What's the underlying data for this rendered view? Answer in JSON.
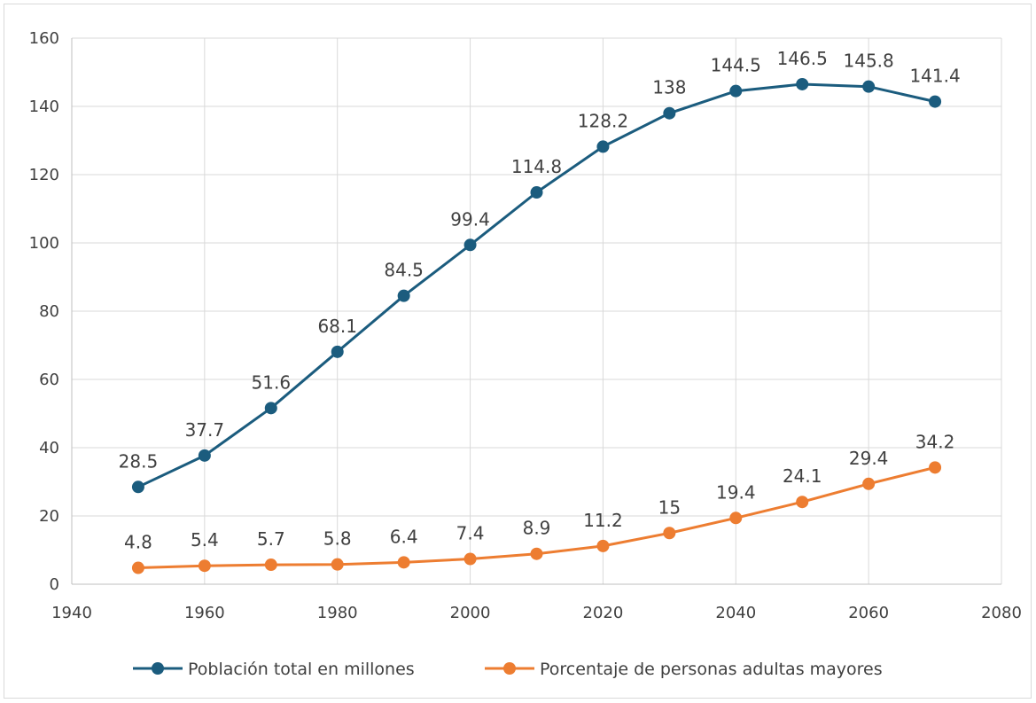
{
  "chart_data": {
    "type": "line",
    "title": "",
    "xlabel": "",
    "ylabel": "",
    "xlim": [
      1940,
      2080
    ],
    "ylim": [
      0,
      160
    ],
    "x_ticks": [
      1940,
      1960,
      1980,
      2000,
      2020,
      2040,
      2060,
      2080
    ],
    "y_ticks": [
      0,
      20,
      40,
      60,
      80,
      100,
      120,
      140,
      160
    ],
    "grid": true,
    "legend_position": "bottom",
    "x": [
      1950,
      1960,
      1970,
      1980,
      1990,
      2000,
      2010,
      2020,
      2030,
      2040,
      2050,
      2060,
      2070
    ],
    "series": [
      {
        "name": "Población total en millones",
        "color": "#1b5c7e",
        "values": [
          28.5,
          37.7,
          51.6,
          68.1,
          84.5,
          99.4,
          114.8,
          128.2,
          138,
          144.5,
          146.5,
          145.8,
          141.4
        ]
      },
      {
        "name": "Porcentaje de personas adultas mayores",
        "color": "#ed7d31",
        "values": [
          4.8,
          5.4,
          5.7,
          5.8,
          6.4,
          7.4,
          8.9,
          11.2,
          15,
          19.4,
          24.1,
          29.4,
          34.2
        ]
      }
    ]
  }
}
